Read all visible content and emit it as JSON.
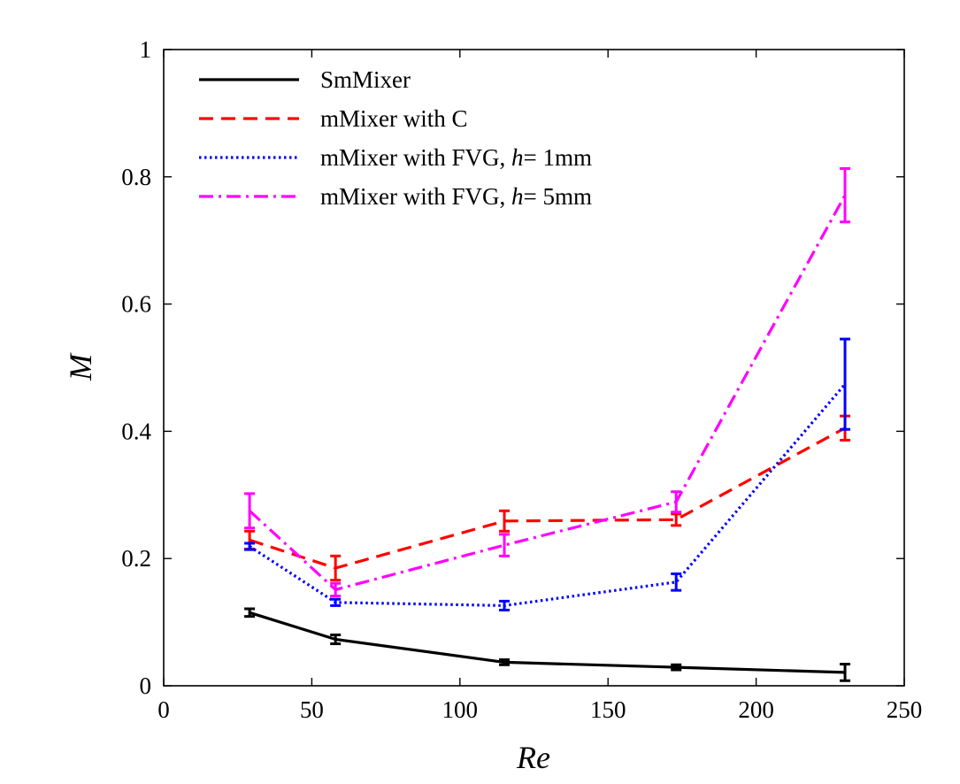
{
  "chart_data": {
    "type": "line",
    "title": "",
    "xlabel": "Re",
    "ylabel": "M",
    "xlim": [
      0,
      250
    ],
    "ylim": [
      0,
      1
    ],
    "xticks": [
      0,
      50,
      100,
      150,
      200,
      250
    ],
    "yticks": [
      0,
      0.2,
      0.4,
      0.6,
      0.8,
      1
    ],
    "xtick_labels": [
      "0",
      "50",
      "100",
      "150",
      "200",
      "250"
    ],
    "ytick_labels": [
      "0",
      "0.2",
      "0.4",
      "0.6",
      "0.8",
      "1"
    ],
    "grid": false,
    "legend_position": "top-left",
    "x": [
      29,
      58,
      115,
      173,
      230
    ],
    "series": [
      {
        "name_parts": [
          "SmMixer"
        ],
        "color": "#000000",
        "style": "solid",
        "values": [
          0.115,
          0.073,
          0.037,
          0.029,
          0.021
        ],
        "errors": [
          0.006,
          0.007,
          0.004,
          0.004,
          0.013
        ]
      },
      {
        "name_parts": [
          "mMixer with C"
        ],
        "color": "#ff0000",
        "style": "dashed",
        "values": [
          0.229,
          0.185,
          0.259,
          0.261,
          0.405
        ],
        "errors": [
          0.014,
          0.019,
          0.016,
          0.009,
          0.019
        ]
      },
      {
        "name_parts": [
          "mMixer with FVG, ",
          "h",
          "= 1mm"
        ],
        "color": "#0000ff",
        "style": "dotted",
        "values": [
          0.219,
          0.131,
          0.126,
          0.163,
          0.474
        ],
        "errors": [
          0.005,
          0.005,
          0.007,
          0.013,
          0.071
        ]
      },
      {
        "name_parts": [
          "mMixer with FVG, ",
          "h",
          "= 5mm"
        ],
        "color": "#ff00ff",
        "style": "dashdot",
        "values": [
          0.275,
          0.151,
          0.221,
          0.289,
          0.771
        ],
        "errors": [
          0.027,
          0.01,
          0.017,
          0.016,
          0.042
        ]
      }
    ]
  }
}
